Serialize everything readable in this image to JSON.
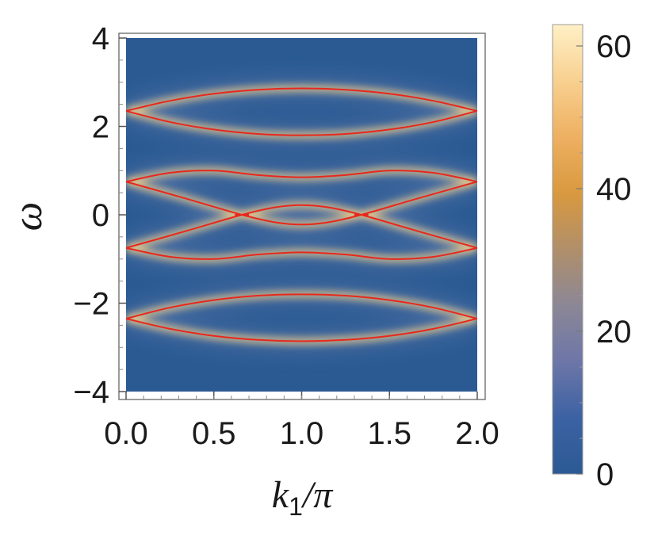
{
  "chart_data": {
    "type": "heatmap",
    "title": "",
    "xlabel": {
      "main": "k",
      "subscript": "1",
      "rest": "/π"
    },
    "ylabel": "ω",
    "xlim": [
      0.0,
      2.0
    ],
    "ylim": [
      -4,
      4
    ],
    "x_ticks": [
      {
        "value": 0.0,
        "label": "0.0"
      },
      {
        "value": 0.5,
        "label": "0.5"
      },
      {
        "value": 1.0,
        "label": "1.0"
      },
      {
        "value": 1.5,
        "label": "1.5"
      },
      {
        "value": 2.0,
        "label": "2.0"
      }
    ],
    "y_ticks": [
      {
        "value": 4,
        "label": "4"
      },
      {
        "value": 2,
        "label": "2"
      },
      {
        "value": 0,
        "label": "0"
      },
      {
        "value": -2,
        "label": "−2"
      },
      {
        "value": -4,
        "label": "−4"
      }
    ],
    "colorbar": {
      "range": [
        0,
        63
      ],
      "ticks": [
        {
          "value": 0,
          "label": "0"
        },
        {
          "value": 20,
          "label": "20"
        },
        {
          "value": 40,
          "label": "40"
        },
        {
          "value": 60,
          "label": "60"
        }
      ],
      "colors": [
        "#2b5a93",
        "#3c62a3",
        "#6d76a8",
        "#8c8796",
        "#b08f6a",
        "#d9993f",
        "#eeb062",
        "#f8d090",
        "#fff0c6"
      ]
    },
    "background_color": "#2b5a93",
    "curve_color": "#e8281c",
    "glow_color": "#f8d28a",
    "series": [
      {
        "name": "band-1-upper",
        "x": [
          0,
          0.25,
          0.5,
          0.75,
          1.0,
          1.25,
          1.5,
          1.75,
          2.0
        ],
        "y": [
          2.35,
          2.58,
          2.74,
          2.83,
          2.86,
          2.83,
          2.74,
          2.58,
          2.35
        ]
      },
      {
        "name": "band-1-lower",
        "x": [
          0,
          0.25,
          0.5,
          0.75,
          1.0,
          1.25,
          1.5,
          1.75,
          2.0
        ],
        "y": [
          2.35,
          2.1,
          1.93,
          1.83,
          1.8,
          1.83,
          1.93,
          2.1,
          2.35
        ]
      },
      {
        "name": "band-2-upper",
        "x": [
          0,
          0.25,
          0.5,
          0.75,
          1.0,
          1.25,
          1.5,
          1.75,
          2.0
        ],
        "y": [
          0.75,
          0.95,
          1.0,
          0.9,
          0.85,
          0.9,
          1.0,
          0.95,
          0.75
        ]
      },
      {
        "name": "band-2-lower",
        "x": [
          0,
          0.33,
          0.66,
          0.85,
          1.0,
          1.15,
          1.34,
          1.67,
          2.0
        ],
        "y": [
          0.75,
          0.38,
          0.0,
          -0.17,
          -0.22,
          -0.17,
          0.0,
          0.38,
          0.75
        ]
      },
      {
        "name": "band-3-upper",
        "x": [
          0,
          0.33,
          0.66,
          0.85,
          1.0,
          1.15,
          1.34,
          1.67,
          2.0
        ],
        "y": [
          -0.75,
          -0.38,
          0.0,
          0.17,
          0.22,
          0.17,
          0.0,
          -0.38,
          -0.75
        ]
      },
      {
        "name": "band-3-lower",
        "x": [
          0,
          0.25,
          0.5,
          0.75,
          1.0,
          1.25,
          1.5,
          1.75,
          2.0
        ],
        "y": [
          -0.75,
          -0.95,
          -1.0,
          -0.9,
          -0.85,
          -0.9,
          -1.0,
          -0.95,
          -0.75
        ]
      },
      {
        "name": "band-4-upper",
        "x": [
          0,
          0.25,
          0.5,
          0.75,
          1.0,
          1.25,
          1.5,
          1.75,
          2.0
        ],
        "y": [
          -2.35,
          -2.1,
          -1.93,
          -1.83,
          -1.8,
          -1.83,
          -1.93,
          -2.1,
          -2.35
        ]
      },
      {
        "name": "band-4-lower",
        "x": [
          0,
          0.25,
          0.5,
          0.75,
          1.0,
          1.25,
          1.5,
          1.75,
          2.0
        ],
        "y": [
          -2.35,
          -2.58,
          -2.74,
          -2.83,
          -2.86,
          -2.83,
          -2.74,
          -2.58,
          -2.35
        ]
      }
    ],
    "flat_segments": [
      {
        "name": "dirac-segment-left",
        "x": [
          0.62,
          0.7
        ],
        "y": 0.0
      },
      {
        "name": "dirac-segment-right",
        "x": [
          1.3,
          1.38
        ],
        "y": 0.0
      }
    ]
  }
}
